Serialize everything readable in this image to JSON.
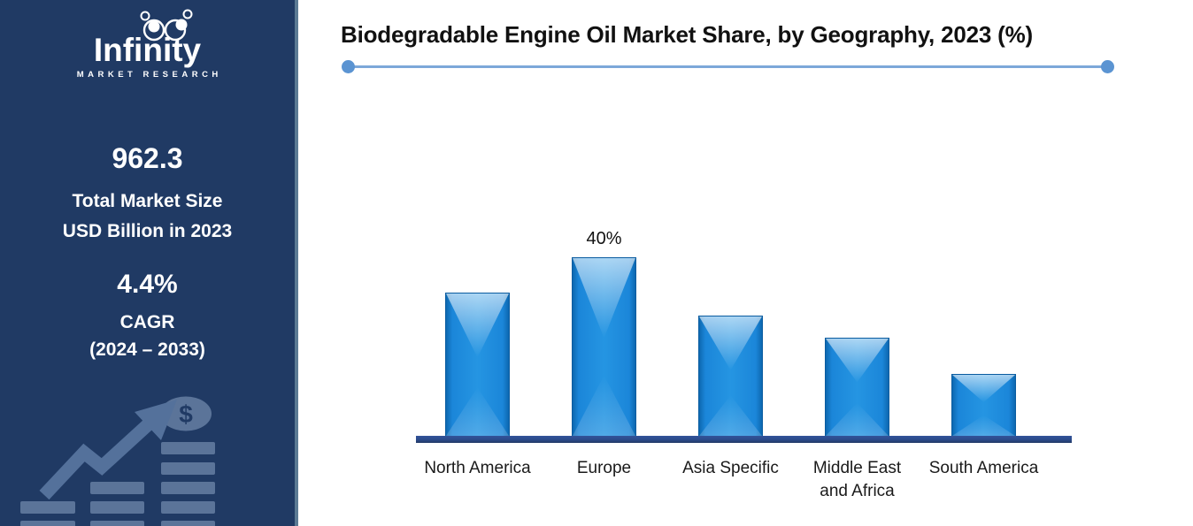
{
  "sidebar": {
    "logo": {
      "brand": "Infinity",
      "tagline": "MARKET RESEARCH"
    },
    "stats": [
      {
        "value": "962.3",
        "label_line1": "Total Market Size",
        "label_line2": "USD Billion in 2023"
      },
      {
        "value": "4.4%",
        "label_line1": "CAGR",
        "label_line2": "(2024 – 2033)"
      }
    ],
    "graphic": {
      "coin_symbol": "$"
    },
    "colors": {
      "background": "#203a64",
      "edge": "#5b7a94",
      "graphic": "#54719b"
    }
  },
  "header": {
    "title": "Biodegradable Engine Oil Market Share, by Geography, 2023 (%)",
    "rule_color": "#7ca8d9",
    "dot_color": "#5b94d2"
  },
  "chart_data": {
    "type": "bar",
    "title": "Biodegradable Engine Oil Market Share, by Geography, 2023 (%)",
    "categories": [
      "North America",
      "Europe",
      "Asia Specific",
      "Middle East and Africa",
      "South America"
    ],
    "values": [
      32,
      40,
      27,
      22,
      14
    ],
    "unit": "%",
    "data_labels": [
      "",
      "40%",
      "",
      "",
      ""
    ],
    "xlabel": "",
    "ylabel": "",
    "ylim": [
      0,
      45
    ],
    "grid": false,
    "legend": false,
    "bar_color": "#1b86d9",
    "axis_color": "#2b4a8a"
  }
}
